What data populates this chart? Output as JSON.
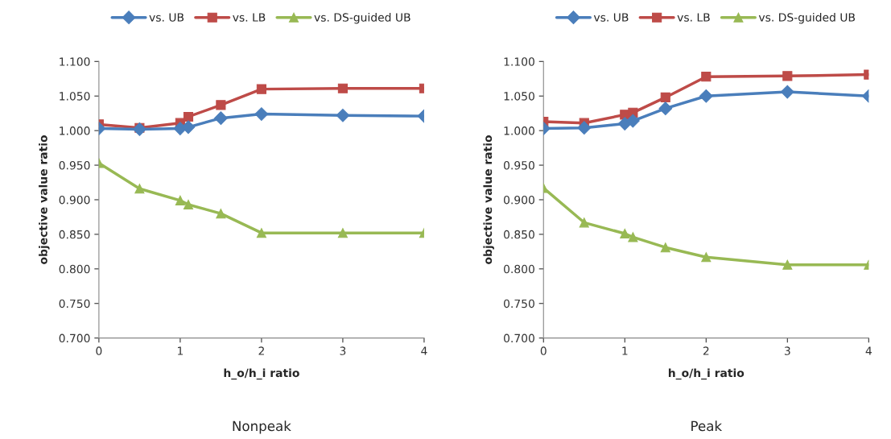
{
  "chart_data": [
    {
      "type": "line",
      "title": "Nonpeak",
      "xlabel": "h_o/h_i ratio",
      "ylabel": "objective value ratio",
      "x": [
        0,
        0.5,
        1,
        1.1,
        1.5,
        2,
        3,
        4
      ],
      "series": [
        {
          "name": "vs. UB",
          "color": "#4a7ebb",
          "marker": "diamond",
          "values": [
            1.003,
            1.002,
            1.003,
            1.005,
            1.018,
            1.024,
            1.022,
            1.021
          ]
        },
        {
          "name": "vs. LB",
          "color": "#be4b48",
          "marker": "square",
          "values": [
            1.009,
            1.004,
            1.011,
            1.02,
            1.037,
            1.06,
            1.061,
            1.061
          ]
        },
        {
          "name": "vs. DS-guided UB",
          "color": "#98b954",
          "marker": "triangle",
          "values": [
            0.953,
            0.916,
            0.899,
            0.893,
            0.88,
            0.852,
            0.852,
            0.852
          ]
        }
      ],
      "xlim": [
        0,
        4
      ],
      "xticks": [
        0,
        1,
        2,
        3,
        4
      ],
      "ylim": [
        0.7,
        1.1
      ],
      "yticks": [
        {
          "value": 0.7,
          "label": "0.700"
        },
        {
          "value": 0.75,
          "label": "0.750"
        },
        {
          "value": 0.8,
          "label": "0.800"
        },
        {
          "value": 0.85,
          "label": "0.850"
        },
        {
          "value": 0.9,
          "label": "0.900"
        },
        {
          "value": 0.95,
          "label": "0.950"
        },
        {
          "value": 1.0,
          "label": "1.000"
        },
        {
          "value": 1.05,
          "label": "1.050"
        },
        {
          "value": 1.1,
          "label": "1.100"
        }
      ],
      "grid": false,
      "legend": "top"
    },
    {
      "type": "line",
      "title": "Peak",
      "xlabel": "h_o/h_i ratio",
      "ylabel": "objective value ratio",
      "x": [
        0,
        0.5,
        1,
        1.1,
        1.5,
        2,
        3,
        4
      ],
      "series": [
        {
          "name": "vs. UB",
          "color": "#4a7ebb",
          "marker": "diamond",
          "values": [
            1.003,
            1.004,
            1.01,
            1.014,
            1.032,
            1.05,
            1.056,
            1.05
          ]
        },
        {
          "name": "vs. LB",
          "color": "#be4b48",
          "marker": "square",
          "values": [
            1.013,
            1.011,
            1.023,
            1.026,
            1.048,
            1.078,
            1.079,
            1.081
          ]
        },
        {
          "name": "vs. DS-guided UB",
          "color": "#98b954",
          "marker": "triangle",
          "values": [
            0.917,
            0.867,
            0.851,
            0.846,
            0.831,
            0.817,
            0.806,
            0.806
          ]
        }
      ],
      "xlim": [
        0,
        4
      ],
      "xticks": [
        0,
        1,
        2,
        3,
        4
      ],
      "ylim": [
        0.7,
        1.1
      ],
      "yticks": [
        {
          "value": 0.7,
          "label": "0.700"
        },
        {
          "value": 0.75,
          "label": "0.750"
        },
        {
          "value": 0.8,
          "label": "0.800"
        },
        {
          "value": 0.85,
          "label": "0.850"
        },
        {
          "value": 0.9,
          "label": "0.900"
        },
        {
          "value": 0.95,
          "label": "0.950"
        },
        {
          "value": 1.0,
          "label": "1.000"
        },
        {
          "value": 1.05,
          "label": "1.050"
        },
        {
          "value": 1.1,
          "label": "1.100"
        }
      ],
      "grid": false,
      "legend": "top"
    }
  ]
}
